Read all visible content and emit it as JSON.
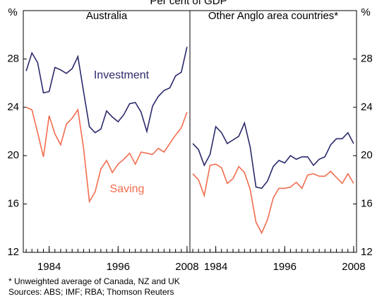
{
  "title": "Per cent of GDP",
  "y_unit": "%",
  "footnote": "*   Unweighted average of Canada, NZ and UK",
  "sources": "Sources: ABS; IMF; RBA; Thomson Reuters",
  "chart_data": [
    {
      "type": "line",
      "title": "Australia",
      "series_labels": true,
      "x": [
        1980,
        1981,
        1982,
        1983,
        1984,
        1985,
        1986,
        1987,
        1988,
        1989,
        1990,
        1991,
        1992,
        1993,
        1994,
        1995,
        1996,
        1997,
        1998,
        1999,
        2000,
        2001,
        2002,
        2003,
        2004,
        2005,
        2006,
        2007,
        2008
      ],
      "xlim": [
        1979.5,
        2008.5
      ],
      "xticks": [
        1984,
        1996,
        2008
      ],
      "ylim": [
        12,
        32
      ],
      "yticks": [
        12,
        16,
        20,
        24,
        28
      ],
      "ytick_side": "left",
      "series": [
        {
          "name": "Investment",
          "color": "#2b2a6b",
          "values": [
            27.0,
            28.5,
            27.7,
            25.2,
            25.3,
            27.3,
            27.1,
            26.8,
            27.2,
            28.2,
            25.3,
            22.4,
            21.9,
            22.2,
            23.7,
            23.2,
            22.8,
            23.4,
            24.3,
            24.4,
            23.6,
            22.0,
            24.1,
            24.9,
            25.4,
            25.6,
            26.6,
            26.9,
            29.0
          ]
        },
        {
          "name": "Saving",
          "color": "#f26d4f",
          "values": [
            24.0,
            23.8,
            21.9,
            19.9,
            23.3,
            21.8,
            20.9,
            22.6,
            23.1,
            23.8,
            20.6,
            16.2,
            17.0,
            18.9,
            19.6,
            18.6,
            19.3,
            19.7,
            20.2,
            19.3,
            20.3,
            20.2,
            20.1,
            20.6,
            20.3,
            21.0,
            21.7,
            22.3,
            23.6
          ]
        }
      ]
    },
    {
      "type": "line",
      "title": "Other Anglo area countries*",
      "series_labels": false,
      "x": [
        1980,
        1981,
        1982,
        1983,
        1984,
        1985,
        1986,
        1987,
        1988,
        1989,
        1990,
        1991,
        1992,
        1993,
        1994,
        1995,
        1996,
        1997,
        1998,
        1999,
        2000,
        2001,
        2002,
        2003,
        2004,
        2005,
        2006,
        2007,
        2008
      ],
      "xlim": [
        1979.5,
        2008.5
      ],
      "xticks": [
        1984,
        1996,
        2008
      ],
      "ylim": [
        12,
        32
      ],
      "yticks": [
        12,
        16,
        20,
        24,
        28
      ],
      "ytick_side": "right",
      "series": [
        {
          "name": "Investment",
          "color": "#2b2a6b",
          "values": [
            21.0,
            20.5,
            19.2,
            20.1,
            22.4,
            21.9,
            21.0,
            21.3,
            21.6,
            22.7,
            20.7,
            17.4,
            17.3,
            17.9,
            19.1,
            19.6,
            19.4,
            20.0,
            19.7,
            19.9,
            19.9,
            19.2,
            19.7,
            19.9,
            20.9,
            21.4,
            21.4,
            21.9,
            21.0
          ]
        },
        {
          "name": "Saving",
          "color": "#f26d4f",
          "values": [
            18.5,
            18.0,
            16.7,
            19.2,
            19.3,
            19.0,
            17.7,
            18.1,
            19.1,
            18.6,
            17.2,
            14.5,
            13.6,
            14.7,
            16.5,
            17.3,
            17.3,
            17.4,
            17.8,
            17.3,
            18.4,
            18.5,
            18.3,
            18.3,
            18.7,
            18.2,
            17.7,
            18.5,
            17.7
          ]
        }
      ]
    }
  ]
}
